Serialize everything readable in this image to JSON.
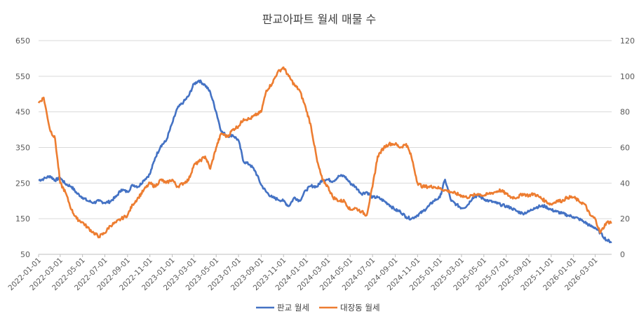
{
  "chart_data": {
    "type": "line",
    "title": "판교아파트 월세 매물 수",
    "xlabel": "",
    "ylabel": "",
    "y2label": "",
    "ylim": [
      50,
      650
    ],
    "yticks": [
      50,
      150,
      250,
      350,
      450,
      550,
      650
    ],
    "y2lim": [
      0,
      120
    ],
    "y2ticks": [
      0,
      20,
      40,
      60,
      80,
      100,
      120
    ],
    "x_start": "2022-01-01",
    "x_end": "2026-04-15",
    "xtick_labels": [
      "2022-01-01",
      "2022-03-01",
      "2022-05-01",
      "2022-07-01",
      "2022-09-01",
      "2022-11-01",
      "2023-01-01",
      "2023-03-01",
      "2023-05-01",
      "2023-07-01",
      "2023-09-01",
      "2023-11-01",
      "2024-01-01",
      "2024-03-01",
      "2024-05-01",
      "2024-07-01",
      "2024-09-01",
      "2024-11-01",
      "2025-01-01",
      "2025-03-01",
      "2025-05-01",
      "2025-07-01",
      "2025-09-01",
      "2025-11-01",
      "2026-01-01",
      "2026-03-01"
    ],
    "grid": true,
    "legend_position": "bottom",
    "series": [
      {
        "name": "판교 월세",
        "axis": "left",
        "color": "#4472C4",
        "dates": [
          "2022-01-01",
          "2022-01-15",
          "2022-02-01",
          "2022-02-15",
          "2022-03-01",
          "2022-03-15",
          "2022-04-01",
          "2022-04-15",
          "2022-05-01",
          "2022-05-15",
          "2022-06-01",
          "2022-06-15",
          "2022-07-01",
          "2022-07-15",
          "2022-08-01",
          "2022-08-15",
          "2022-09-01",
          "2022-09-15",
          "2022-10-01",
          "2022-10-15",
          "2022-11-01",
          "2022-11-15",
          "2022-12-01",
          "2022-12-15",
          "2023-01-01",
          "2023-01-15",
          "2023-02-01",
          "2023-02-15",
          "2023-03-01",
          "2023-03-15",
          "2023-04-01",
          "2023-04-15",
          "2023-05-01",
          "2023-05-15",
          "2023-06-01",
          "2023-06-15",
          "2023-07-01",
          "2023-07-15",
          "2023-08-01",
          "2023-08-15",
          "2023-09-01",
          "2023-09-15",
          "2023-10-01",
          "2023-10-15",
          "2023-11-01",
          "2023-11-15",
          "2023-12-01",
          "2023-12-15",
          "2024-01-01",
          "2024-01-15",
          "2024-02-01",
          "2024-02-15",
          "2024-03-01",
          "2024-03-15",
          "2024-04-01",
          "2024-04-15",
          "2024-05-01",
          "2024-05-15",
          "2024-06-01",
          "2024-06-15",
          "2024-07-01",
          "2024-07-15",
          "2024-08-01",
          "2024-08-15",
          "2024-09-01",
          "2024-09-15",
          "2024-10-01",
          "2024-10-15",
          "2024-11-01",
          "2024-11-15",
          "2024-12-01",
          "2024-12-15",
          "2025-01-01",
          "2025-01-15",
          "2025-02-01",
          "2025-02-15",
          "2025-03-01",
          "2025-03-15",
          "2025-04-01",
          "2025-04-15",
          "2025-05-01",
          "2025-05-15",
          "2025-06-01",
          "2025-06-15",
          "2025-07-01",
          "2025-07-15",
          "2025-08-01",
          "2025-08-15",
          "2025-09-01",
          "2025-09-15",
          "2025-10-01",
          "2025-10-15",
          "2025-11-01",
          "2025-11-15",
          "2025-12-01",
          "2025-12-15",
          "2026-01-01",
          "2026-01-15",
          "2026-02-01",
          "2026-02-15",
          "2026-03-01",
          "2026-03-15",
          "2026-04-01",
          "2026-04-15"
        ],
        "values": [
          258,
          262,
          270,
          258,
          265,
          248,
          240,
          222,
          210,
          200,
          195,
          200,
          195,
          198,
          212,
          232,
          225,
          245,
          240,
          258,
          275,
          320,
          355,
          368,
          418,
          460,
          478,
          495,
          528,
          538,
          525,
          505,
          450,
          395,
          382,
          385,
          370,
          310,
          302,
          285,
          245,
          225,
          210,
          205,
          200,
          185,
          210,
          200,
          230,
          242,
          240,
          260,
          260,
          255,
          270,
          270,
          250,
          240,
          220,
          225,
          210,
          210,
          200,
          190,
          175,
          170,
          155,
          150,
          160,
          170,
          185,
          200,
          210,
          260,
          200,
          190,
          180,
          185,
          210,
          215,
          205,
          200,
          195,
          190,
          185,
          180,
          170,
          165,
          170,
          180,
          185,
          185,
          175,
          170,
          165,
          160,
          155,
          150,
          140,
          130,
          125,
          110,
          90,
          85
        ]
      },
      {
        "name": "대장동 월세",
        "axis": "right",
        "color": "#ED7D31",
        "dates": [
          "2022-01-01",
          "2022-01-15",
          "2022-02-01",
          "2022-02-15",
          "2022-03-01",
          "2022-03-15",
          "2022-04-01",
          "2022-04-15",
          "2022-05-01",
          "2022-05-15",
          "2022-06-01",
          "2022-06-15",
          "2022-07-01",
          "2022-07-15",
          "2022-08-01",
          "2022-08-15",
          "2022-09-01",
          "2022-09-15",
          "2022-10-01",
          "2022-10-15",
          "2022-11-01",
          "2022-11-15",
          "2022-12-01",
          "2022-12-15",
          "2023-01-01",
          "2023-01-15",
          "2023-02-01",
          "2023-02-15",
          "2023-03-01",
          "2023-03-15",
          "2023-04-01",
          "2023-04-15",
          "2023-05-01",
          "2023-05-15",
          "2023-06-01",
          "2023-06-15",
          "2023-07-01",
          "2023-07-15",
          "2023-08-01",
          "2023-08-15",
          "2023-09-01",
          "2023-09-15",
          "2023-10-01",
          "2023-10-15",
          "2023-11-01",
          "2023-11-15",
          "2023-12-01",
          "2023-12-15",
          "2024-01-01",
          "2024-01-15",
          "2024-02-01",
          "2024-02-15",
          "2024-03-01",
          "2024-03-15",
          "2024-04-01",
          "2024-04-15",
          "2024-05-01",
          "2024-05-15",
          "2024-06-01",
          "2024-06-15",
          "2024-07-01",
          "2024-07-15",
          "2024-08-01",
          "2024-08-15",
          "2024-09-01",
          "2024-09-15",
          "2024-10-01",
          "2024-10-15",
          "2024-11-01",
          "2024-11-15",
          "2024-12-01",
          "2024-12-15",
          "2025-01-01",
          "2025-01-15",
          "2025-02-01",
          "2025-02-15",
          "2025-03-01",
          "2025-03-15",
          "2025-04-01",
          "2025-04-15",
          "2025-05-01",
          "2025-05-15",
          "2025-06-01",
          "2025-06-15",
          "2025-07-01",
          "2025-07-15",
          "2025-08-01",
          "2025-08-15",
          "2025-09-01",
          "2025-09-15",
          "2025-10-01",
          "2025-10-15",
          "2025-11-01",
          "2025-11-15",
          "2025-12-01",
          "2025-12-15",
          "2026-01-01",
          "2026-01-15",
          "2026-02-01",
          "2026-02-15",
          "2026-03-01",
          "2026-03-15",
          "2026-04-01",
          "2026-04-15"
        ],
        "values": [
          85,
          88,
          70,
          65,
          40,
          35,
          25,
          20,
          18,
          15,
          12,
          10,
          12,
          16,
          18,
          20,
          22,
          28,
          32,
          36,
          40,
          38,
          42,
          40,
          42,
          38,
          40,
          42,
          50,
          52,
          55,
          48,
          60,
          68,
          66,
          70,
          72,
          76,
          76,
          78,
          80,
          92,
          96,
          102,
          105,
          100,
          95,
          92,
          82,
          72,
          52,
          42,
          38,
          32,
          30,
          30,
          25,
          26,
          24,
          22,
          38,
          55,
          60,
          62,
          62,
          60,
          62,
          55,
          40,
          38,
          38,
          38,
          37,
          36,
          35,
          34,
          33,
          32,
          33,
          34,
          33,
          34,
          35,
          36,
          34,
          32,
          32,
          34,
          33,
          34,
          32,
          30,
          28,
          30,
          30,
          32,
          32,
          30,
          28,
          22,
          20,
          12,
          18,
          18
        ]
      }
    ]
  }
}
